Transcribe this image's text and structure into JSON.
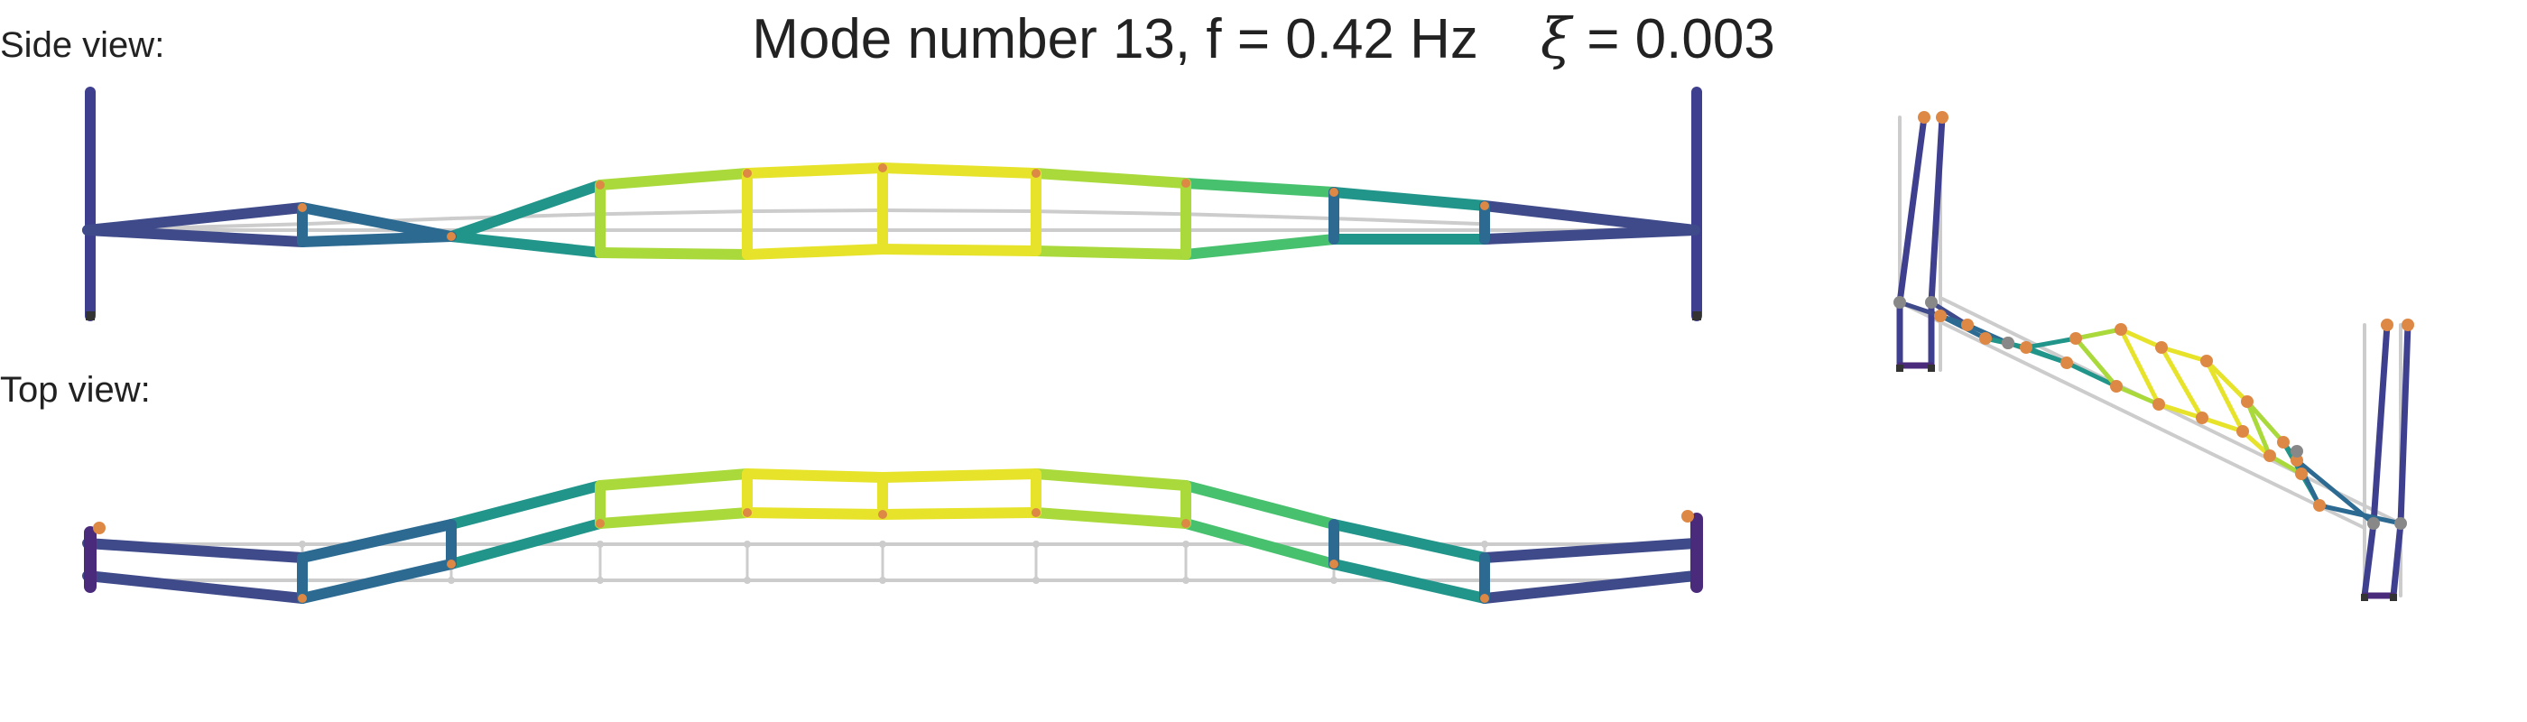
{
  "title": {
    "mode_text": "Mode number 13, f = 0.42 Hz",
    "xi_symbol": "ξ",
    "xi_text": " = 0.003"
  },
  "labels": {
    "side_view": "Side view:",
    "top_view": "Top view:"
  },
  "colors": {
    "background": "#ffffff",
    "undeformed": "#cccccc",
    "node_orange": "#dd8844",
    "node_gray": "#888888",
    "tower": "#3f3f8f",
    "deck_dark": "#3f4a8b",
    "deck_blue": "#2c6a92",
    "deck_teal": "#21958a",
    "deck_green": "#48c16e",
    "deck_lime": "#a9d93a",
    "deck_yellow": "#e6e32a"
  }
}
